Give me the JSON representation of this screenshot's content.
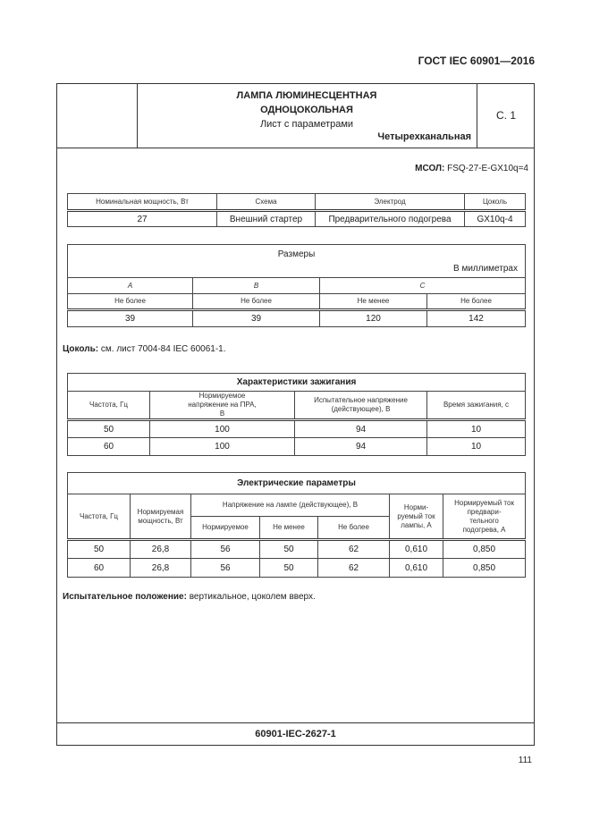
{
  "header": {
    "standard": "ГОСТ IEC 60901—2016",
    "title_line1": "ЛАМПА ЛЮМИНЕСЦЕНТНАЯ",
    "title_line2": "ОДНОЦОКОЛЬНАЯ",
    "subtitle": "Лист с параметрами",
    "type": "Четырехканальная",
    "sheet": "С. 1"
  },
  "mcol": {
    "label": "МСОЛ:",
    "value": " FSQ-27-E-GX10q=4"
  },
  "table1": {
    "headers": [
      "Номинальная мощность, Вт",
      "Схема",
      "Электрод",
      "Цоколь"
    ],
    "row": [
      "27",
      "Внешний стартер",
      "Предварительного подогрева",
      "GX10q-4"
    ]
  },
  "dims": {
    "title": "Размеры",
    "unit": "В миллиметрах",
    "letters": [
      "A",
      "B",
      "C"
    ],
    "limits": [
      "Не более",
      "Не более",
      "Не менее",
      "Не более"
    ],
    "values": [
      "39",
      "39",
      "120",
      "142"
    ]
  },
  "cap": {
    "label": "Цоколь:",
    "text": " см. лист 7004-84 IEC 60061-1."
  },
  "ignition": {
    "title": "Характеристики зажигания",
    "headers": [
      "Частота, Гц",
      "Нормируемое напряжение на ПРА, В",
      "Испытательное напряжение (действующее), В",
      "Время зажигания, с"
    ],
    "rows": [
      [
        "50",
        "100",
        "94",
        "10"
      ],
      [
        "60",
        "100",
        "94",
        "10"
      ]
    ]
  },
  "electric": {
    "title": "Электрические параметры",
    "h_freq": "Частота, Гц",
    "h_power": "Нормируемая мощность, Вт",
    "h_voltage": "Напряжение на лампе (действующее), В",
    "h_sub": [
      "Нормируемое",
      "Не менее",
      "Не более"
    ],
    "h_current": "Норми-руемый ток лампы, А",
    "h_preheat": "Нормируемый ток предвари-тельного подогрева, А",
    "rows": [
      [
        "50",
        "26,8",
        "56",
        "50",
        "62",
        "0,610",
        "0,850"
      ],
      [
        "60",
        "26,8",
        "56",
        "50",
        "62",
        "0,610",
        "0,850"
      ]
    ]
  },
  "test": {
    "label": "Испытательное положение:",
    "text": " вертикальное, цоколем вверх."
  },
  "footer": {
    "code": "60901-IEC-2627-1",
    "page": "111"
  }
}
